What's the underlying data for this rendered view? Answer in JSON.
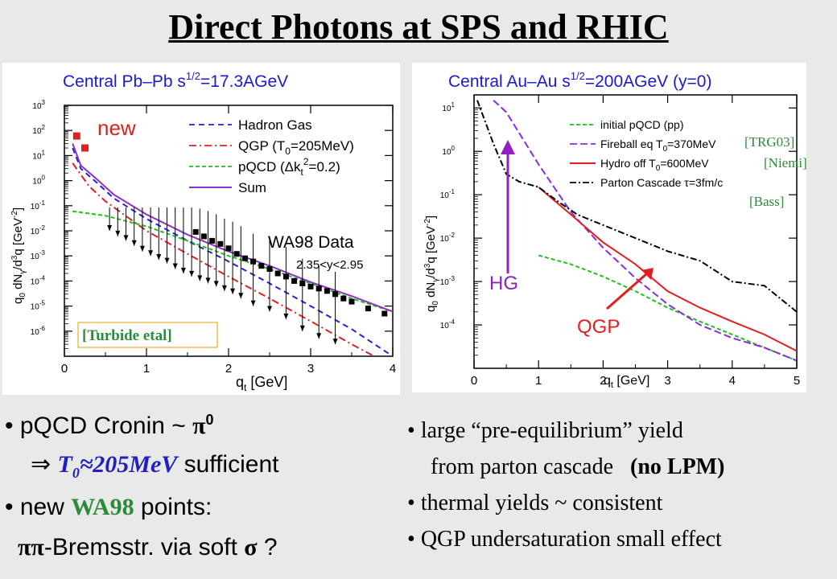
{
  "title": "Direct Photons at SPS and RHIC",
  "colors": {
    "accent_red": "#e02020",
    "accent_purple": "#9020c0",
    "accent_blue": "#2020c0",
    "accent_green": "#2a8c3a"
  },
  "chart_data": [
    {
      "type": "line",
      "title": "Central Pb–Pb  s^1/2=17.3AGeV",
      "title_main": "Central Pb–Pb  s",
      "title_sup": "1/2",
      "title_rest": "=17.3AGeV",
      "xlabel": "q_t [GeV]",
      "ylabel": "q_0 dN_γ/d^3q [GeV^-2]",
      "xlim": [
        0,
        4
      ],
      "ylim": [
        1e-07,
        1000
      ],
      "yscale": "log",
      "xticks": [
        "0",
        "1",
        "2",
        "3",
        "4"
      ],
      "yticks": [
        "10^3",
        "10^2",
        "10^1",
        "10^0",
        "10^-1",
        "10^-2",
        "10^-3",
        "10^-4",
        "10^-5",
        "10^-6"
      ],
      "series": [
        {
          "name": "Hadron Gas",
          "color": "#2020e0",
          "dash": "7,5",
          "x": [
            0.1,
            0.2,
            0.4,
            0.6,
            1.0,
            1.5,
            2.0,
            2.5,
            3.0,
            3.5,
            4.0
          ],
          "y": [
            20,
            3,
            0.8,
            0.2,
            0.03,
            0.004,
            0.0006,
            8e-05,
            1e-05,
            1.2e-06,
            1e-07
          ]
        },
        {
          "name": "QGP (T_0=205MeV)",
          "color": "#e02020",
          "dash": "9,4,2,4",
          "x": [
            0.1,
            0.3,
            0.5,
            1.0,
            1.5,
            2.0,
            2.5,
            3.0,
            3.5,
            4.0
          ],
          "y": [
            5,
            0.6,
            0.15,
            0.01,
            0.0012,
            0.00015,
            2e-05,
            2.5e-06,
            3e-07,
            4e-08
          ]
        },
        {
          "name": "pQCD (Δk_t^2=0.2)",
          "color": "#20c020",
          "dash": "5,3",
          "x": [
            0.1,
            0.5,
            1.0,
            1.5,
            2.0,
            2.5,
            3.0,
            3.5,
            4.0
          ],
          "y": [
            0.06,
            0.04,
            0.015,
            0.004,
            0.001,
            0.0003,
            8e-05,
            2e-05,
            6e-06
          ]
        },
        {
          "name": "Sum",
          "color": "#9030c0",
          "dash": "",
          "x": [
            0.1,
            0.2,
            0.4,
            0.6,
            1.0,
            1.5,
            2.0,
            2.5,
            3.0,
            3.5,
            4.0
          ],
          "y": [
            30,
            4,
            1.1,
            0.28,
            0.045,
            0.007,
            0.0015,
            0.0004,
            9e-05,
            2.5e-05,
            6e-06
          ]
        }
      ],
      "markers": {
        "name": "WA98 Data",
        "x": [
          1.6,
          1.7,
          1.8,
          1.9,
          2.0,
          2.1,
          2.2,
          2.3,
          2.4,
          2.5,
          2.6,
          2.7,
          2.8,
          2.9,
          3.0,
          3.1,
          3.2,
          3.3,
          3.4,
          3.5,
          3.7,
          3.9
        ],
        "y": [
          0.009,
          0.006,
          0.004,
          0.003,
          0.002,
          0.0012,
          0.0008,
          0.0006,
          0.0004,
          0.0003,
          0.0002,
          0.00015,
          0.0001,
          8e-05,
          6e-05,
          5e-05,
          4e-05,
          3e-05,
          2e-05,
          1.5e-05,
          8e-06,
          5e-06
        ]
      },
      "upper_limits": {
        "x": [
          0.55,
          0.65,
          0.75,
          0.85,
          0.95,
          1.05,
          1.15,
          1.25,
          1.35,
          1.45,
          1.55,
          1.65,
          1.75,
          1.85,
          1.95,
          2.05,
          2.15,
          2.3,
          2.5,
          2.7,
          2.9,
          3.1,
          3.3
        ],
        "y": [
          0.01,
          0.006,
          0.004,
          0.0025,
          0.0015,
          0.001,
          0.0007,
          0.0005,
          0.0003,
          0.0002,
          0.00015,
          0.0001,
          8e-05,
          6e-05,
          4e-05,
          3e-05,
          2e-05,
          1e-05,
          6e-06,
          3e-06,
          1e-06,
          5e-07,
          3e-07
        ]
      },
      "new_points": {
        "label": "new",
        "x": [
          0.15,
          0.25
        ],
        "y": [
          60,
          20
        ]
      },
      "legend": [
        "Hadron Gas",
        "QGP (T_0=205MeV)",
        "pQCD (Δk_t^2=0.2)",
        "Sum"
      ],
      "legend_parts": {
        "hg": "Hadron Gas",
        "qgp_a": "QGP (T",
        "qgp_sub": "0",
        "qgp_b": "=205MeV)",
        "pqcd_a": "pQCD (Δk",
        "pqcd_sub": "t",
        "pqcd_sup": "2",
        "pqcd_b": "=0.2)",
        "sum": "Sum"
      },
      "annotation_data": "WA98 Data",
      "annotation_range": "2.35<y<2.95",
      "reference": "[Turbide etal]"
    },
    {
      "type": "line",
      "title": "Central Au–Au  s^1/2=200AGeV (y=0)",
      "title_main": "Central Au–Au  s",
      "title_sup": "1/2",
      "title_rest": "=200AGeV  (y=0)",
      "xlabel": "q_t [GeV]",
      "ylabel": "q_0 dN_γ/d^3q [GeV^-2]",
      "xlim": [
        0,
        5
      ],
      "ylim": [
        1e-05,
        20
      ],
      "yscale": "log",
      "xticks": [
        "0",
        "1",
        "2",
        "3",
        "4",
        "5"
      ],
      "yticks": [
        "10^1",
        "10^0",
        "10^-1",
        "10^-2",
        "10^-3",
        "10^-4"
      ],
      "series": [
        {
          "name": "initial pQCD (pp)",
          "color": "#20c020",
          "dash": "5,3",
          "x": [
            1.0,
            1.5,
            2.0,
            2.5,
            3.0,
            3.5,
            4.0,
            4.5,
            5.0
          ],
          "y": [
            0.004,
            0.0025,
            0.0013,
            0.0006,
            0.00025,
            0.00012,
            6e-05,
            3e-05,
            1.5e-05
          ]
        },
        {
          "name": "Fireball eq T_0=370MeV",
          "color": "#8a2be2",
          "dash": "9,4",
          "x": [
            0.3,
            0.5,
            1.0,
            1.5,
            2.0,
            2.5,
            3.0,
            3.5,
            4.0,
            4.5,
            5.0
          ],
          "y": [
            15,
            8,
            0.5,
            0.04,
            0.006,
            0.0012,
            0.0003,
            0.0001,
            5e-05,
            3e-05,
            1.5e-05
          ]
        },
        {
          "name": "Hydro off T_0=600MeV",
          "color": "#e02020",
          "dash": "",
          "x": [
            1.0,
            1.5,
            2.0,
            2.5,
            3.0,
            3.5,
            4.0,
            4.5,
            5.0
          ],
          "y": [
            0.15,
            0.035,
            0.008,
            0.0025,
            0.0006,
            0.00025,
            0.00012,
            6e-05,
            2.5e-05
          ]
        },
        {
          "name": "Parton Cascade τ=3fm/c",
          "color": "#000000",
          "dash": "8,3,2,3",
          "x": [
            0.05,
            0.3,
            0.5,
            0.7,
            1.0,
            1.3,
            1.6,
            2.0,
            2.5,
            3.0,
            3.5,
            4.0,
            4.5,
            5.0
          ],
          "y": [
            15,
            1.5,
            0.3,
            0.2,
            0.15,
            0.07,
            0.035,
            0.02,
            0.01,
            0.005,
            0.003,
            0.001,
            0.0008,
            0.0002
          ]
        }
      ],
      "legend": [
        "initial pQCD (pp)",
        "Fireball eq T_0=370MeV",
        "Hydro off T_0=600MeV",
        "Parton Cascade τ=3fm/c"
      ],
      "legend_parts": {
        "ini": "initial pQCD (pp)",
        "fb_a": "Fireball eq T",
        "fb_sub": "0",
        "fb_b": "=370MeV",
        "hy_a": "Hydro off T",
        "hy_sub": "0",
        "hy_b": "=600MeV",
        "pc": "Parton Cascade τ=3fm/c"
      },
      "refs": [
        "[TRG03]",
        "[Niemi]",
        "[Bass]"
      ],
      "labels": {
        "hg": "HG",
        "qgp": "QGP"
      }
    }
  ],
  "bullets_left": {
    "b1_text": "pQCD Cronin ~ ",
    "b1_pi": "π",
    "b1_sup": "0",
    "b2_arrow": "⇒ ",
    "b2_t": "T",
    "b2_sub": "0",
    "b2_rest": "≈205MeV",
    "b2_tail": " sufficient",
    "b3_a": "new ",
    "b3_wa98": "WA98",
    "b3_b": " points:",
    "b4_pipi": "ππ",
    "b4_text": "-Bremsstr. via soft ",
    "b4_sigma": "σ",
    "b4_q": " ?"
  },
  "bullets_right": {
    "r1": "large “pre-equilibrium” yield",
    "r2_a": "from parton cascade   ",
    "r2_b": "(no LPM)",
    "r3": "thermal yields ~ consistent",
    "r4": "QGP undersaturation small effect"
  },
  "bullet_symbol": "•"
}
